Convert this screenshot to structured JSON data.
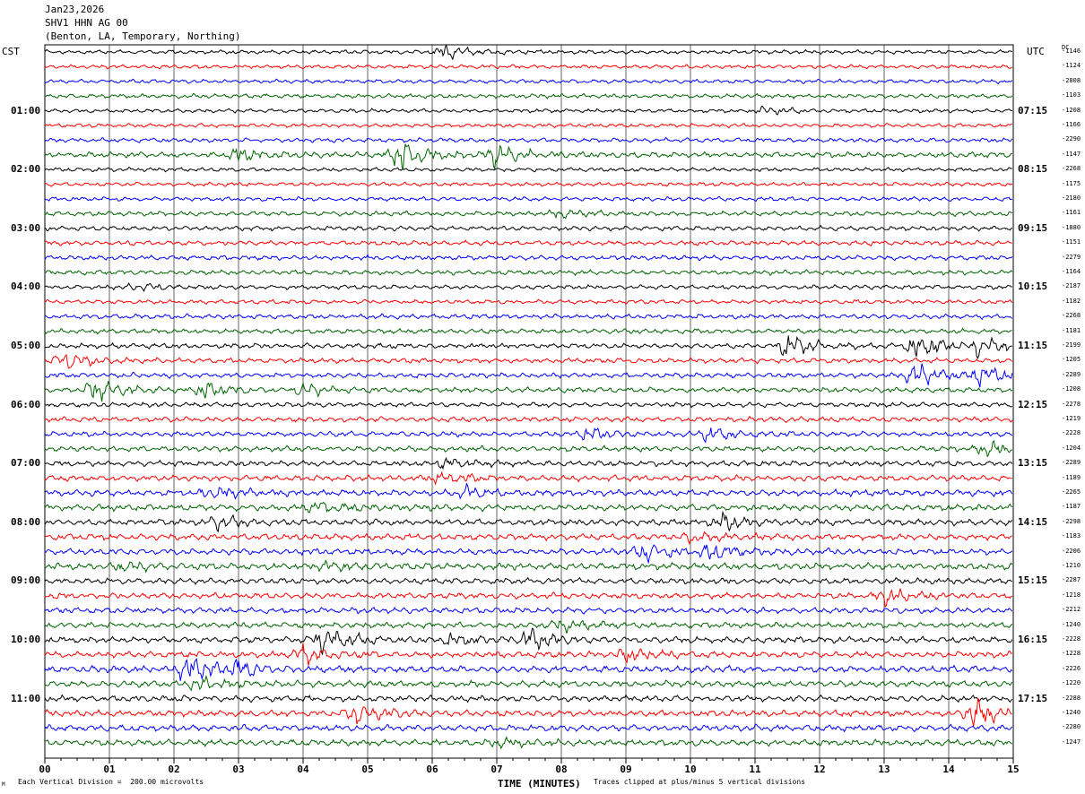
{
  "header": {
    "date": "Jan23,2026",
    "station": "SHV1 HHN AG 00",
    "location": "(Benton, LA, Temporary, Northing)"
  },
  "left_axis_title": "CST",
  "right_axis_title": "UTC",
  "dc_title": "DC",
  "footer": {
    "scale_note": "Each Vertical Division =  200.00 microvolts",
    "clip_note": "Traces clipped at plus/minus 5 vertical divisions",
    "mark": "M"
  },
  "chart_data": {
    "type": "line",
    "title": "",
    "xlabel": "TIME (MINUTES)",
    "xlim": [
      0,
      15
    ],
    "x_ticks": [
      "00",
      "01",
      "02",
      "03",
      "04",
      "05",
      "06",
      "07",
      "08",
      "09",
      "10",
      "11",
      "12",
      "13",
      "14",
      "15"
    ],
    "trace_colors": [
      "#000000",
      "#ff0000",
      "#0000ff",
      "#006400"
    ],
    "left_hour_labels": [
      "01:00",
      "02:00",
      "03:00",
      "04:00",
      "05:00",
      "06:00",
      "07:00",
      "08:00",
      "09:00",
      "10:00",
      "11:00"
    ],
    "right_hour_labels": [
      "07:15",
      "08:15",
      "09:15",
      "10:15",
      "11:15",
      "12:15",
      "13:15",
      "14:15",
      "15:15",
      "16:15",
      "17:15"
    ],
    "dc_offsets": [
      "-1146",
      "-1124",
      "-2808",
      "-1103",
      "-1208",
      "-1166",
      "-2290",
      "-1147",
      "-2268",
      "-1175",
      "-2180",
      "-1161",
      "-1880",
      "-1151",
      "-2279",
      "-1164",
      "-2187",
      "-1182",
      "-2268",
      "-1181",
      "-2199",
      "-1205",
      "-2289",
      "-1208",
      "-2278",
      "-1219",
      "-2228",
      "-1204",
      "-2289",
      "-1189",
      "-2265",
      "-1187",
      "-2298",
      "-1183",
      "-2206",
      "-1210",
      "-2287",
      "-1218",
      "-2212",
      "-1240",
      "-2228",
      "-1228",
      "-2226",
      "-1220",
      "-2288",
      "-1240",
      "-2280",
      "-1247"
    ],
    "traces": [
      {
        "amp": 1.0,
        "events": [
          {
            "minute": 6.2,
            "amp": 4
          }
        ]
      },
      {
        "amp": 1.0,
        "events": []
      },
      {
        "amp": 1.0,
        "events": []
      },
      {
        "amp": 1.1,
        "events": []
      },
      {
        "amp": 1.0,
        "events": [
          {
            "minute": 11.2,
            "amp": 2
          }
        ]
      },
      {
        "amp": 1.0,
        "events": []
      },
      {
        "amp": 1.1,
        "events": []
      },
      {
        "amp": 1.4,
        "events": [
          {
            "minute": 5.5,
            "amp": 8
          },
          {
            "minute": 7.0,
            "amp": 6
          },
          {
            "minute": 3.0,
            "amp": 3
          }
        ]
      },
      {
        "amp": 1.0,
        "events": []
      },
      {
        "amp": 1.0,
        "events": []
      },
      {
        "amp": 1.1,
        "events": []
      },
      {
        "amp": 1.2,
        "events": [
          {
            "minute": 8.0,
            "amp": 2
          }
        ]
      },
      {
        "amp": 1.2,
        "events": []
      },
      {
        "amp": 1.2,
        "events": []
      },
      {
        "amp": 1.2,
        "events": []
      },
      {
        "amp": 1.2,
        "events": []
      },
      {
        "amp": 1.1,
        "events": [
          {
            "minute": 1.4,
            "amp": 2
          }
        ]
      },
      {
        "amp": 1.1,
        "events": []
      },
      {
        "amp": 1.2,
        "events": []
      },
      {
        "amp": 1.2,
        "events": []
      },
      {
        "amp": 1.3,
        "events": [
          {
            "minute": 11.5,
            "amp": 6
          },
          {
            "minute": 13.5,
            "amp": 7
          },
          {
            "minute": 14.5,
            "amp": 5
          }
        ]
      },
      {
        "amp": 1.3,
        "events": [
          {
            "minute": 0.3,
            "amp": 4
          }
        ]
      },
      {
        "amp": 1.3,
        "events": [
          {
            "minute": 13.5,
            "amp": 6
          },
          {
            "minute": 14.5,
            "amp": 5
          }
        ]
      },
      {
        "amp": 1.3,
        "events": [
          {
            "minute": 0.8,
            "amp": 6
          },
          {
            "minute": 2.5,
            "amp": 4
          },
          {
            "minute": 4.0,
            "amp": 3
          }
        ]
      },
      {
        "amp": 1.2,
        "events": []
      },
      {
        "amp": 1.3,
        "events": []
      },
      {
        "amp": 1.3,
        "events": [
          {
            "minute": 8.4,
            "amp": 3
          },
          {
            "minute": 10.3,
            "amp": 4
          }
        ]
      },
      {
        "amp": 1.4,
        "events": [
          {
            "minute": 14.6,
            "amp": 3
          }
        ]
      },
      {
        "amp": 1.4,
        "events": [
          {
            "minute": 6.2,
            "amp": 3
          }
        ]
      },
      {
        "amp": 1.5,
        "events": [
          {
            "minute": 6.1,
            "amp": 3
          }
        ]
      },
      {
        "amp": 1.6,
        "events": [
          {
            "minute": 2.6,
            "amp": 3
          },
          {
            "minute": 6.5,
            "amp": 3
          }
        ]
      },
      {
        "amp": 1.6,
        "events": [
          {
            "minute": 4.2,
            "amp": 3
          }
        ]
      },
      {
        "amp": 1.6,
        "events": [
          {
            "minute": 2.7,
            "amp": 3
          },
          {
            "minute": 10.5,
            "amp": 4
          }
        ]
      },
      {
        "amp": 1.6,
        "events": [
          {
            "minute": 10.0,
            "amp": 2
          }
        ]
      },
      {
        "amp": 1.6,
        "events": [
          {
            "minute": 9.3,
            "amp": 4
          },
          {
            "minute": 10.3,
            "amp": 4
          }
        ]
      },
      {
        "amp": 1.7,
        "events": [
          {
            "minute": 1.2,
            "amp": 2
          },
          {
            "minute": 4.4,
            "amp": 2
          }
        ]
      },
      {
        "amp": 1.5,
        "events": []
      },
      {
        "amp": 1.5,
        "events": [
          {
            "minute": 13.0,
            "amp": 4
          }
        ]
      },
      {
        "amp": 1.5,
        "events": []
      },
      {
        "amp": 1.5,
        "events": [
          {
            "minute": 8.0,
            "amp": 3
          }
        ]
      },
      {
        "amp": 1.6,
        "events": [
          {
            "minute": 4.3,
            "amp": 7
          },
          {
            "minute": 6.3,
            "amp": 3
          },
          {
            "minute": 7.5,
            "amp": 5
          }
        ]
      },
      {
        "amp": 1.6,
        "events": [
          {
            "minute": 4.0,
            "amp": 5
          },
          {
            "minute": 9.0,
            "amp": 3
          }
        ]
      },
      {
        "amp": 1.7,
        "events": [
          {
            "minute": 2.2,
            "amp": 7
          },
          {
            "minute": 3.0,
            "amp": 4
          }
        ]
      },
      {
        "amp": 1.6,
        "events": [
          {
            "minute": 2.4,
            "amp": 3
          }
        ]
      },
      {
        "amp": 1.6,
        "events": []
      },
      {
        "amp": 1.6,
        "events": [
          {
            "minute": 4.8,
            "amp": 5
          },
          {
            "minute": 14.4,
            "amp": 8
          }
        ]
      },
      {
        "amp": 1.6,
        "events": []
      },
      {
        "amp": 1.6,
        "events": [
          {
            "minute": 7.0,
            "amp": 2
          }
        ]
      }
    ]
  }
}
